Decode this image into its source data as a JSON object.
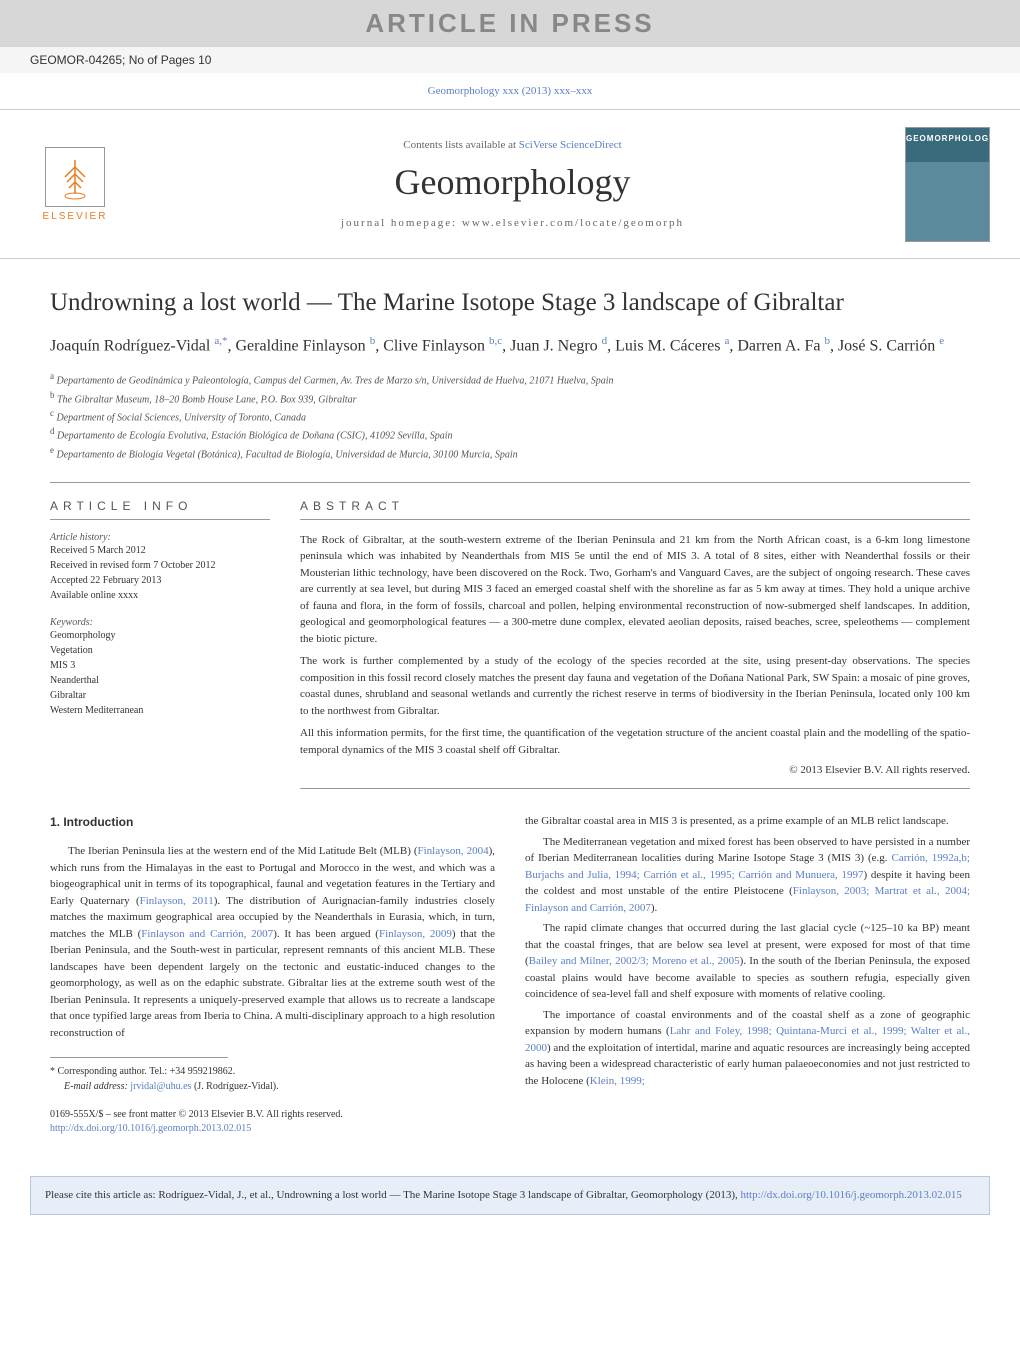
{
  "banner": "ARTICLE IN PRESS",
  "articleId": "GEOMOR-04265; No of Pages 10",
  "topCitation": "Geomorphology xxx (2013) xxx–xxx",
  "contentsPrefix": "Contents lists available at ",
  "contentsLink": "SciVerse ScienceDirect",
  "journalName": "Geomorphology",
  "homepagePrefix": "journal homepage: ",
  "homepageUrl": "www.elsevier.com/locate/geomorph",
  "elsevierLabel": "ELSEVIER",
  "coverTitle": "GEOMORPHOLOGY",
  "title": "Undrowning a lost world — The Marine Isotope Stage 3 landscape of Gibraltar",
  "authors": [
    {
      "name": "Joaquín Rodríguez-Vidal ",
      "sup": "a,*"
    },
    {
      "name": ", Geraldine Finlayson ",
      "sup": "b"
    },
    {
      "name": ", Clive Finlayson ",
      "sup": "b,c"
    },
    {
      "name": ", Juan J. Negro ",
      "sup": "d"
    },
    {
      "name": ", Luis M. Cáceres ",
      "sup": "a"
    },
    {
      "name": ", Darren A. Fa ",
      "sup": "b"
    },
    {
      "name": ", José S. Carrión ",
      "sup": "e"
    }
  ],
  "affiliations": [
    {
      "sup": "a",
      "text": " Departamento de Geodinámica y Paleontología, Campus del Carmen, Av. Tres de Marzo s/n, Universidad de Huelva, 21071 Huelva, Spain"
    },
    {
      "sup": "b",
      "text": " The Gibraltar Museum, 18–20 Bomb House Lane, P.O. Box 939, Gibraltar"
    },
    {
      "sup": "c",
      "text": " Department of Social Sciences, University of Toronto, Canada"
    },
    {
      "sup": "d",
      "text": " Departamento de Ecología Evolutiva, Estación Biológica de Doñana (CSIC), 41092 Sevilla, Spain"
    },
    {
      "sup": "e",
      "text": " Departamento de Biología Vegetal (Botánica), Facultad de Biología, Universidad de Murcia, 30100 Murcia, Spain"
    }
  ],
  "infoLabel": "ARTICLE INFO",
  "abstractLabel": "ABSTRACT",
  "historyLabel": "Article history:",
  "history": [
    "Received 5 March 2012",
    "Received in revised form 7 October 2012",
    "Accepted 22 February 2013",
    "Available online xxxx"
  ],
  "keywordsLabel": "Keywords:",
  "keywords": [
    "Geomorphology",
    "Vegetation",
    "MIS 3",
    "Neanderthal",
    "Gibraltar",
    "Western Mediterranean"
  ],
  "abstractParas": [
    "The Rock of Gibraltar, at the south-western extreme of the Iberian Peninsula and 21 km from the North African coast, is a 6-km long limestone peninsula which was inhabited by Neanderthals from MIS 5e until the end of MIS 3. A total of 8 sites, either with Neanderthal fossils or their Mousterian lithic technology, have been discovered on the Rock. Two, Gorham's and Vanguard Caves, are the subject of ongoing research. These caves are currently at sea level, but during MIS 3 faced an emerged coastal shelf with the shoreline as far as 5 km away at times. They hold a unique archive of fauna and flora, in the form of fossils, charcoal and pollen, helping environmental reconstruction of now-submerged shelf landscapes. In addition, geological and geomorphological features — a 300-metre dune complex, elevated aeolian deposits, raised beaches, scree, speleothems — complement the biotic picture.",
    "The work is further complemented by a study of the ecology of the species recorded at the site, using present-day observations. The species composition in this fossil record closely matches the present day fauna and vegetation of the Doñana National Park, SW Spain: a mosaic of pine groves, coastal dunes, shrubland and seasonal wetlands and currently the richest reserve in terms of biodiversity in the Iberian Peninsula, located only 100 km to the northwest from Gibraltar.",
    "All this information permits, for the first time, the quantification of the vegetation structure of the ancient coastal plain and the modelling of the spatio-temporal dynamics of the MIS 3 coastal shelf off Gibraltar."
  ],
  "copyrightLine": "© 2013 Elsevier B.V. All rights reserved.",
  "introHeading": "1. Introduction",
  "leftCol": {
    "p1_a": "The Iberian Peninsula lies at the western end of the Mid Latitude Belt (MLB) (",
    "p1_r1": "Finlayson, 2004",
    "p1_b": "), which runs from the Himalayas in the east to Portugal and Morocco in the west, and which was a biogeographical unit in terms of its topographical, faunal and vegetation features in the Tertiary and Early Quaternary (",
    "p1_r2": "Finlayson, 2011",
    "p1_c": "). The distribution of Aurignacian-family industries closely matches the maximum geographical area occupied by the Neanderthals in Eurasia, which, in turn, matches the MLB (",
    "p1_r3": "Finlayson and Carrión, 2007",
    "p1_d": "). It has been argued (",
    "p1_r4": "Finlayson, 2009",
    "p1_e": ") that the Iberian Peninsula, and the South-west in particular, represent remnants of this ancient MLB. These landscapes have been dependent largely on the tectonic and eustatic-induced changes to the geomorphology, as well as on the edaphic substrate. Gibraltar lies at the extreme south west of the Iberian Peninsula. It represents a uniquely-preserved example that allows us to recreate a landscape that once typified large areas from Iberia to China. A multi-disciplinary approach to a high resolution reconstruction of"
  },
  "rightCol": {
    "p1": "the Gibraltar coastal area in MIS 3 is presented, as a prime example of an MLB relict landscape.",
    "p2_a": "The Mediterranean vegetation and mixed forest has been observed to have persisted in a number of Iberian Mediterranean localities during Marine Isotope Stage 3 (MIS 3) (e.g. ",
    "p2_r1": "Carrión, 1992a,b; Burjachs and Julia, 1994; Carrión et al., 1995; Carrión and Munuera, 1997",
    "p2_b": ") despite it having been the coldest and most unstable of the entire Pleistocene (",
    "p2_r2": "Finlayson, 2003; Martrat et al., 2004; Finlayson and Carrión, 2007",
    "p2_c": ").",
    "p3_a": "The rapid climate changes that occurred during the last glacial cycle (~125–10 ka BP) meant that the coastal fringes, that are below sea level at present, were exposed for most of that time (",
    "p3_r1": "Bailey and Milner, 2002/3; Moreno et al., 2005",
    "p3_b": "). In the south of the Iberian Peninsula, the exposed coastal plains would have become available to species as southern refugia, especially given coincidence of sea-level fall and shelf exposure with moments of relative cooling.",
    "p4_a": "The importance of coastal environments and of the coastal shelf as a zone of geographic expansion by modern humans (",
    "p4_r1": "Lahr and Foley, 1998; Quintana-Murci et al., 1999; Walter et al., 2000",
    "p4_b": ") and the exploitation of intertidal, marine and aquatic resources are increasingly being accepted as having been a widespread characteristic of early human palaeoeconomies and not just restricted to the Holocene (",
    "p4_r2": "Klein, 1999;"
  },
  "footCorr": "* Corresponding author. Tel.: +34 959219862.",
  "footEmailLabel": "E-mail address: ",
  "footEmail": "jrvidal@uhu.es",
  "footEmailSuffix": " (J. Rodríguez-Vidal).",
  "footIssn": "0169-555X/$ – see front matter © 2013 Elsevier B.V. All rights reserved.",
  "footDoi": "http://dx.doi.org/10.1016/j.geomorph.2013.02.015",
  "citeBoxPrefix": "Please cite this article as: Rodríguez-Vidal, J., et al., Undrowning a lost world — The Marine Isotope Stage 3 landscape of Gibraltar, Geomorphology (2013), ",
  "citeBoxDoi": "http://dx.doi.org/10.1016/j.geomorph.2013.02.015",
  "colors": {
    "link": "#5a7fc4",
    "bannerBg": "#d7d7d7",
    "bannerText": "#888888",
    "citeBoxBg": "#e8eef7",
    "citeBoxBorder": "#b8c8e0"
  }
}
